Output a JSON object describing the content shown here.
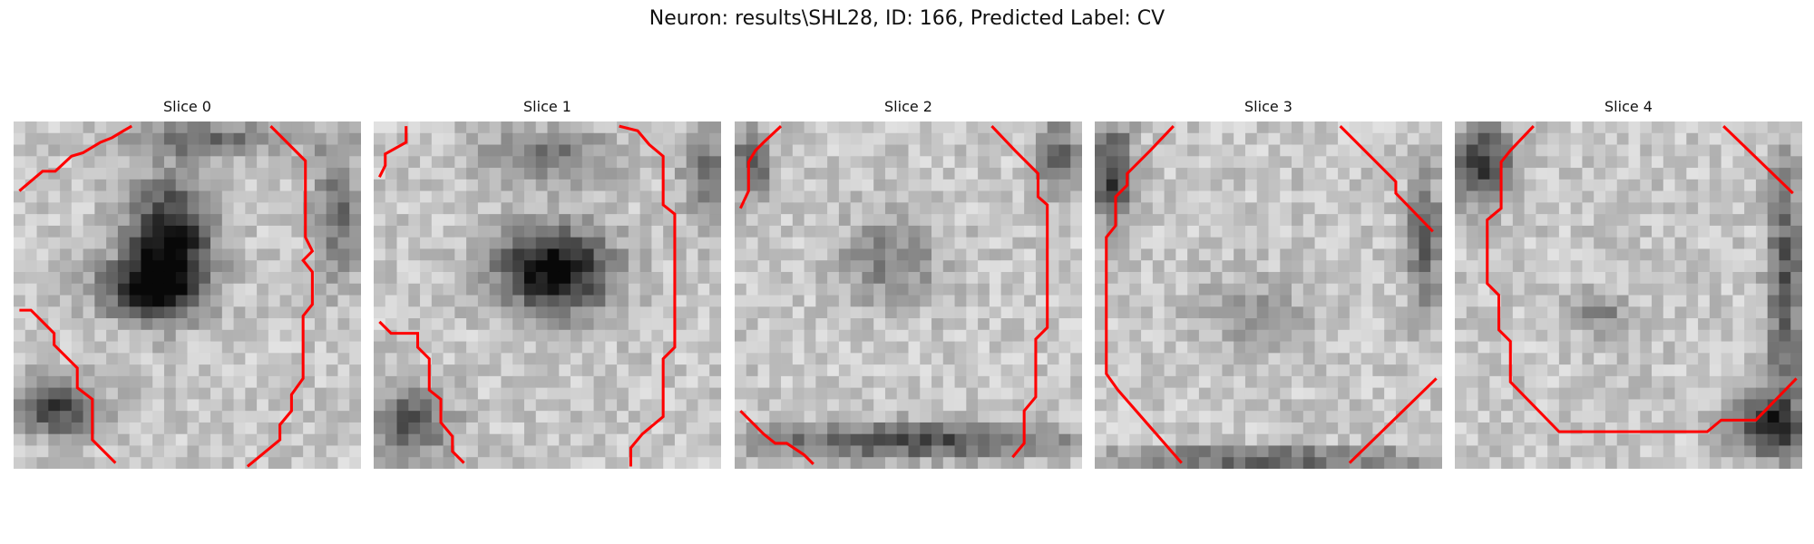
{
  "figure": {
    "title": "Neuron: results\\SHL28, ID: 166, Predicted Label: CV"
  },
  "panels": [
    {
      "label": "Slice 0"
    },
    {
      "label": "Slice 1"
    },
    {
      "label": "Slice 2"
    },
    {
      "label": "Slice 3"
    },
    {
      "label": "Slice 4"
    }
  ],
  "colors": {
    "contour": "#ff0000",
    "background": "#ffffff",
    "cell_light": "#e0e0e0",
    "cell_dark": "#1a1a1a"
  },
  "image_grid": {
    "cells_per_side": 30,
    "colormap": "gray"
  }
}
